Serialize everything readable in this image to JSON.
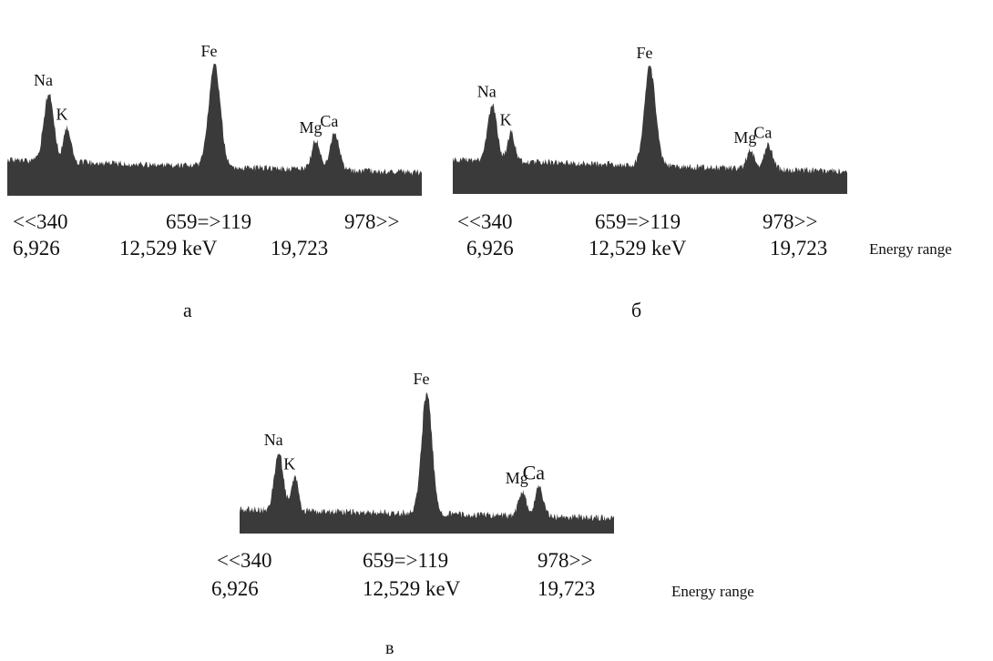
{
  "chart_data": [
    {
      "type": "area",
      "panel_label": "а",
      "x_labels": {
        "top": [
          "<<340",
          "659=>119",
          "978>>"
        ],
        "bottom": [
          "6,926",
          "12,529 keV",
          "19,723"
        ]
      },
      "energy_range_label": "",
      "baseline": 0.27,
      "peaks": [
        {
          "label": "Na",
          "x": 0.1,
          "height": 0.78,
          "width": 0.012
        },
        {
          "label": "K",
          "x": 0.145,
          "height": 0.52,
          "width": 0.009
        },
        {
          "label": "Fe",
          "x": 0.5,
          "height": 1.0,
          "width": 0.014
        },
        {
          "label": "Mg",
          "x": 0.745,
          "height": 0.42,
          "width": 0.01
        },
        {
          "label": "Ca",
          "x": 0.79,
          "height": 0.47,
          "width": 0.011
        }
      ]
    },
    {
      "type": "area",
      "panel_label": "б",
      "x_labels": {
        "top": [
          "<<340",
          "659=>119",
          "978>>"
        ],
        "bottom": [
          "6,926",
          "12,529 keV",
          "19,723"
        ]
      },
      "energy_range_label": "Energy range",
      "baseline": 0.27,
      "peaks": [
        {
          "label": "Na",
          "x": 0.1,
          "height": 0.7,
          "width": 0.012
        },
        {
          "label": "K",
          "x": 0.148,
          "height": 0.48,
          "width": 0.009
        },
        {
          "label": "Fe",
          "x": 0.5,
          "height": 1.0,
          "width": 0.014
        },
        {
          "label": "Mg",
          "x": 0.755,
          "height": 0.34,
          "width": 0.01
        },
        {
          "label": "Ca",
          "x": 0.8,
          "height": 0.38,
          "width": 0.011
        }
      ]
    },
    {
      "type": "area",
      "panel_label": "в",
      "x_labels": {
        "top": [
          "<<340",
          "659=>119",
          "978>>"
        ],
        "bottom": [
          "6,926",
          "12,529 keV",
          "19,723"
        ]
      },
      "energy_range_label": "Energy range",
      "baseline": 0.17,
      "peaks": [
        {
          "label": "Na",
          "x": 0.105,
          "height": 0.57,
          "width": 0.012
        },
        {
          "label": "K",
          "x": 0.148,
          "height": 0.4,
          "width": 0.009
        },
        {
          "label": "Fe",
          "x": 0.5,
          "height": 1.0,
          "width": 0.014
        },
        {
          "label": "Mg",
          "x": 0.755,
          "height": 0.3,
          "width": 0.01
        },
        {
          "label": "Ca",
          "x": 0.8,
          "height": 0.33,
          "width": 0.011
        }
      ]
    }
  ],
  "style": {
    "fill_color": "#3a3a3a"
  }
}
